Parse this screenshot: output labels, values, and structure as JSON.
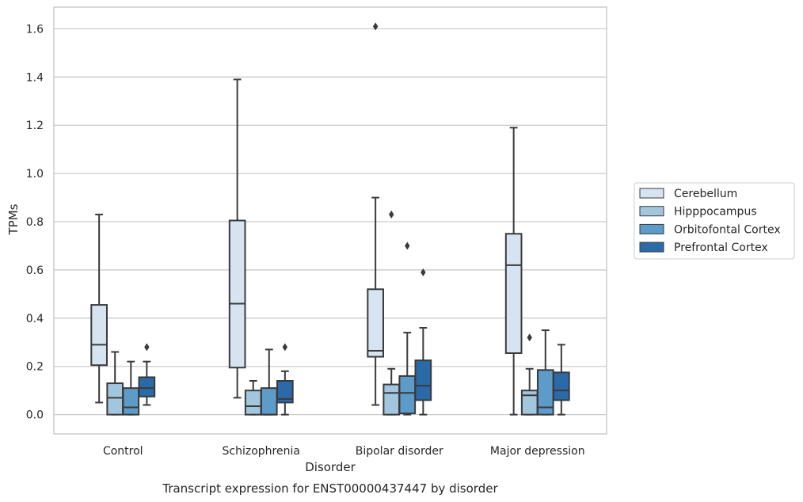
{
  "chart_data": {
    "type": "box",
    "title": "Transcript expression for ENST00000437447 by disorder",
    "xlabel": "Disorder",
    "ylabel": "TPMs",
    "ylim": [
      -0.08,
      1.69
    ],
    "yticks": [
      0.0,
      0.2,
      0.4,
      0.6,
      0.8,
      1.0,
      1.2,
      1.4,
      1.6
    ],
    "ytick_labels": [
      "0.0",
      "0.2",
      "0.4",
      "0.6",
      "0.8",
      "1.0",
      "1.2",
      "1.4",
      "1.6"
    ],
    "categories": [
      "Control",
      "Schizophrenia",
      "Bipolar disorder",
      "Major depression"
    ],
    "grid": "horizontal",
    "legend_position": "right",
    "series": [
      {
        "name": "Cerebellum",
        "color": "#d6e4f2",
        "boxes": [
          {
            "whislo": 0.05,
            "q1": 0.205,
            "med": 0.29,
            "q3": 0.455,
            "whishi": 0.83,
            "fliers": []
          },
          {
            "whislo": 0.07,
            "q1": 0.195,
            "med": 0.46,
            "q3": 0.805,
            "whishi": 1.39,
            "fliers": []
          },
          {
            "whislo": 0.04,
            "q1": 0.24,
            "med": 0.265,
            "q3": 0.52,
            "whishi": 0.9,
            "fliers": [
              1.61
            ]
          },
          {
            "whislo": 0.0,
            "q1": 0.255,
            "med": 0.62,
            "q3": 0.75,
            "whishi": 1.19,
            "fliers": []
          }
        ]
      },
      {
        "name": "Hipppocampus",
        "color": "#a3c6df",
        "boxes": [
          {
            "whislo": 0.0,
            "q1": 0.0,
            "med": 0.07,
            "q3": 0.13,
            "whishi": 0.26,
            "fliers": []
          },
          {
            "whislo": 0.0,
            "q1": 0.0,
            "med": 0.035,
            "q3": 0.1,
            "whishi": 0.14,
            "fliers": []
          },
          {
            "whislo": 0.0,
            "q1": 0.0,
            "med": 0.09,
            "q3": 0.125,
            "whishi": 0.19,
            "fliers": [
              0.83
            ]
          },
          {
            "whislo": 0.0,
            "q1": 0.0,
            "med": 0.08,
            "q3": 0.1,
            "whishi": 0.19,
            "fliers": [
              0.32
            ]
          }
        ]
      },
      {
        "name": "Orbitofontal Cortex",
        "color": "#5d9bc9",
        "boxes": [
          {
            "whislo": 0.0,
            "q1": 0.0,
            "med": 0.03,
            "q3": 0.11,
            "whishi": 0.22,
            "fliers": []
          },
          {
            "whislo": 0.0,
            "q1": 0.0,
            "med": 0.0,
            "q3": 0.11,
            "whishi": 0.27,
            "fliers": []
          },
          {
            "whislo": 0.0,
            "q1": 0.005,
            "med": 0.09,
            "q3": 0.16,
            "whishi": 0.34,
            "fliers": [
              0.7
            ]
          },
          {
            "whislo": 0.0,
            "q1": 0.0,
            "med": 0.03,
            "q3": 0.185,
            "whishi": 0.35,
            "fliers": []
          }
        ]
      },
      {
        "name": "Prefrontal Cortex",
        "color": "#2b6aa9",
        "boxes": [
          {
            "whislo": 0.04,
            "q1": 0.075,
            "med": 0.11,
            "q3": 0.155,
            "whishi": 0.22,
            "fliers": [
              0.28
            ]
          },
          {
            "whislo": 0.0,
            "q1": 0.05,
            "med": 0.065,
            "q3": 0.14,
            "whishi": 0.18,
            "fliers": [
              0.28
            ]
          },
          {
            "whislo": 0.0,
            "q1": 0.06,
            "med": 0.12,
            "q3": 0.225,
            "whishi": 0.36,
            "fliers": [
              0.59
            ]
          },
          {
            "whislo": 0.0,
            "q1": 0.06,
            "med": 0.1,
            "q3": 0.175,
            "whishi": 0.29,
            "fliers": []
          }
        ]
      }
    ]
  }
}
